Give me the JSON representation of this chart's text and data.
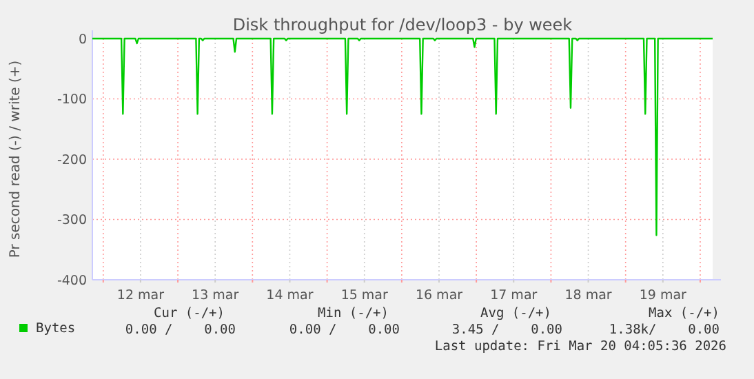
{
  "chart_data": {
    "type": "line",
    "title": "Disk throughput for /dev/loop3 - by week",
    "ylabel": "Pr second read (-) / write (+)",
    "xlim": [
      "2026-03-11T20:30",
      "2026-03-20T04:00"
    ],
    "xticks": [
      {
        "value": "2026-03-12T00:00",
        "label": null
      },
      {
        "value": "2026-03-12T12:00",
        "label": "12 mar"
      },
      {
        "value": "2026-03-13T00:00",
        "label": null
      },
      {
        "value": "2026-03-13T12:00",
        "label": "13 mar"
      },
      {
        "value": "2026-03-14T00:00",
        "label": null
      },
      {
        "value": "2026-03-14T12:00",
        "label": "14 mar"
      },
      {
        "value": "2026-03-15T00:00",
        "label": null
      },
      {
        "value": "2026-03-15T12:00",
        "label": "15 mar"
      },
      {
        "value": "2026-03-16T00:00",
        "label": null
      },
      {
        "value": "2026-03-16T12:00",
        "label": "16 mar"
      },
      {
        "value": "2026-03-17T00:00",
        "label": null
      },
      {
        "value": "2026-03-17T12:00",
        "label": "17 mar"
      },
      {
        "value": "2026-03-18T00:00",
        "label": null
      },
      {
        "value": "2026-03-18T12:00",
        "label": "18 mar"
      },
      {
        "value": "2026-03-19T00:00",
        "label": null
      },
      {
        "value": "2026-03-19T12:00",
        "label": "19 mar"
      },
      {
        "value": "2026-03-20T00:00",
        "label": null
      }
    ],
    "ylim": [
      -400,
      0
    ],
    "yticks": [
      -400,
      -300,
      -200,
      -100,
      0
    ],
    "grid": true,
    "legend": "bottom left",
    "series": [
      {
        "name": "Bytes",
        "color": "#00cc00",
        "x": [
          "2026-03-11T20:30",
          "2026-03-12T05:50",
          "2026-03-12T06:20",
          "2026-03-12T06:50",
          "2026-03-12T10:20",
          "2026-03-12T10:50",
          "2026-03-12T11:20",
          "2026-03-13T05:50",
          "2026-03-13T06:20",
          "2026-03-13T06:50",
          "2026-03-13T07:30",
          "2026-03-13T08:00",
          "2026-03-13T08:30",
          "2026-03-13T17:50",
          "2026-03-13T18:20",
          "2026-03-13T18:50",
          "2026-03-14T05:50",
          "2026-03-14T06:20",
          "2026-03-14T06:50",
          "2026-03-14T10:20",
          "2026-03-14T10:50",
          "2026-03-14T11:20",
          "2026-03-15T05:50",
          "2026-03-15T06:20",
          "2026-03-15T06:50",
          "2026-03-15T09:50",
          "2026-03-15T10:20",
          "2026-03-15T10:50",
          "2026-03-16T05:50",
          "2026-03-16T06:20",
          "2026-03-16T06:50",
          "2026-03-16T10:10",
          "2026-03-16T10:40",
          "2026-03-16T11:10",
          "2026-03-16T22:55",
          "2026-03-16T23:25",
          "2026-03-16T23:55",
          "2026-03-17T05:50",
          "2026-03-17T06:20",
          "2026-03-17T06:50",
          "2026-03-18T05:50",
          "2026-03-18T06:20",
          "2026-03-18T06:50",
          "2026-03-18T08:00",
          "2026-03-18T08:30",
          "2026-03-18T09:00",
          "2026-03-19T05:50",
          "2026-03-19T06:20",
          "2026-03-19T06:50",
          "2026-03-19T09:25",
          "2026-03-19T09:55",
          "2026-03-19T10:25",
          "2026-03-20T04:00"
        ],
        "values": [
          0,
          0,
          -125,
          0,
          0,
          -8,
          0,
          0,
          -125,
          0,
          0,
          -3,
          0,
          0,
          -22,
          0,
          0,
          -125,
          0,
          0,
          -3,
          0,
          0,
          -125,
          0,
          0,
          -3,
          0,
          0,
          -125,
          0,
          0,
          -3,
          0,
          0,
          -14,
          0,
          0,
          -125,
          0,
          0,
          -115,
          0,
          0,
          -3,
          0,
          0,
          -125,
          0,
          0,
          -326,
          0,
          0
        ]
      }
    ],
    "annotations": [
      "Cur (-/+)",
      "Min (-/+)",
      "Avg (-/+)",
      "Max (-/+)",
      "0.00 /    0.00",
      "0.00 /    0.00",
      "3.45 /    0.00",
      "1.38k/    0.00",
      "Last update: Fri Mar 20 04:05:36 2026"
    ]
  }
}
